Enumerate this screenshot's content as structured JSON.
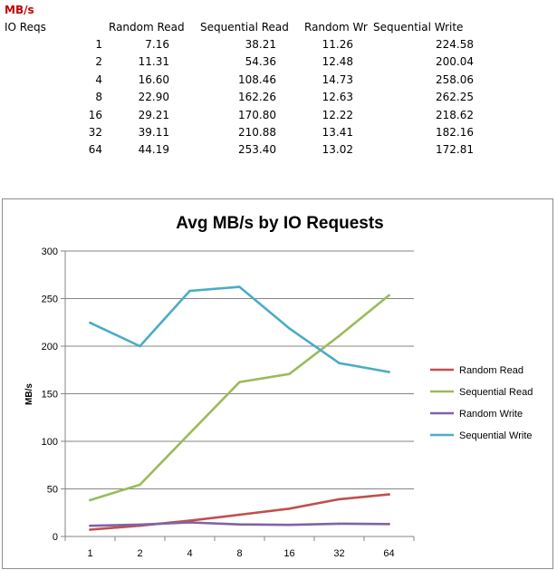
{
  "sheet": {
    "unit_label": "MB/s",
    "row_header": "IO Reqs",
    "columns": [
      "Random Read",
      "Sequential Read",
      "Random Wr",
      "Sequential Write"
    ],
    "rows": [
      [
        "1",
        "7.16",
        "38.21",
        "11.26",
        "224.58"
      ],
      [
        "2",
        "11.31",
        "54.36",
        "12.48",
        "200.04"
      ],
      [
        "4",
        "16.60",
        "108.46",
        "14.73",
        "258.06"
      ],
      [
        "8",
        "22.90",
        "162.26",
        "12.63",
        "262.25"
      ],
      [
        "16",
        "29.21",
        "170.80",
        "12.22",
        "218.62"
      ],
      [
        "32",
        "39.11",
        "210.88",
        "13.41",
        "182.16"
      ],
      [
        "64",
        "44.19",
        "253.40",
        "13.02",
        "172.81"
      ]
    ]
  },
  "chart_data": {
    "type": "line",
    "title": "Avg MB/s by IO Requests",
    "ylabel": "MB/s",
    "xlabel": "",
    "categories": [
      "1",
      "2",
      "4",
      "8",
      "16",
      "32",
      "64"
    ],
    "ylim": [
      0,
      300
    ],
    "yticks": [
      "0",
      "50",
      "100",
      "150",
      "200",
      "250",
      "300"
    ],
    "grid": true,
    "legend_position": "right",
    "series": [
      {
        "name": "Random Read",
        "color": "#c0504d",
        "values": [
          7.16,
          11.31,
          16.6,
          22.9,
          29.21,
          39.11,
          44.19
        ]
      },
      {
        "name": "Sequential Read",
        "color": "#9bbb59",
        "values": [
          38.21,
          54.36,
          108.46,
          162.26,
          170.8,
          210.88,
          253.4
        ]
      },
      {
        "name": "Random Write",
        "color": "#8064a2",
        "values": [
          11.26,
          12.48,
          14.73,
          12.63,
          12.22,
          13.41,
          13.02
        ]
      },
      {
        "name": "Sequential Write",
        "color": "#4bacc6",
        "values": [
          224.58,
          200.04,
          258.06,
          262.25,
          218.62,
          182.16,
          172.81
        ]
      }
    ]
  }
}
